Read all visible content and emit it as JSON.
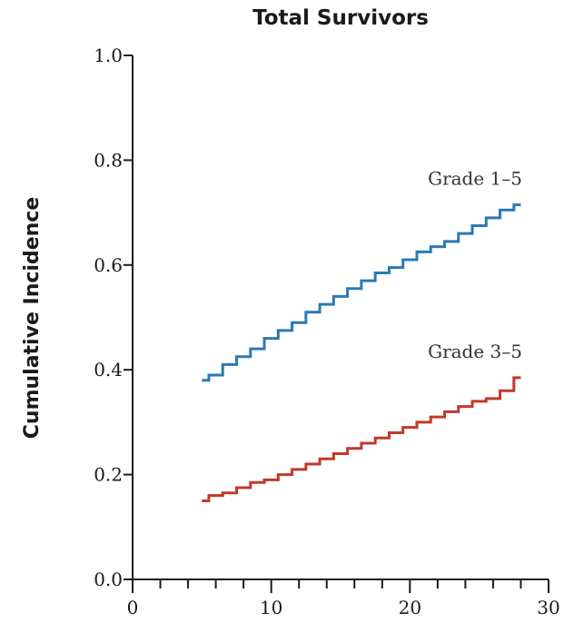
{
  "chart_data": {
    "type": "line",
    "title": "Total Survivors",
    "xlabel": "",
    "ylabel": "Cumulative Incidence",
    "xlim": [
      0,
      30
    ],
    "ylim": [
      0.0,
      1.0
    ],
    "x_ticks": [
      "0",
      "10",
      "20",
      "30"
    ],
    "y_ticks": [
      "0.0",
      "0.2",
      "0.4",
      "0.6",
      "0.8",
      "1.0"
    ],
    "grid": false,
    "series": [
      {
        "name": "Grade 1–5",
        "color": "#2a7ab5",
        "x": [
          5,
          5.5,
          6.5,
          7.5,
          8.5,
          9.5,
          10.5,
          11.5,
          12.5,
          13.5,
          14.5,
          15.5,
          16.5,
          17.5,
          18.5,
          19.5,
          20.5,
          21.5,
          22.5,
          23.5,
          24.5,
          25.5,
          26.5,
          27.5
        ],
        "y": [
          0.38,
          0.39,
          0.41,
          0.425,
          0.44,
          0.46,
          0.475,
          0.49,
          0.51,
          0.525,
          0.54,
          0.555,
          0.57,
          0.585,
          0.595,
          0.61,
          0.625,
          0.635,
          0.645,
          0.66,
          0.675,
          0.69,
          0.705,
          0.715
        ]
      },
      {
        "name": "Grade 3–5",
        "color": "#c0392b",
        "x": [
          5,
          5.5,
          6.5,
          7.5,
          8.5,
          9.5,
          10.5,
          11.5,
          12.5,
          13.5,
          14.5,
          15.5,
          16.5,
          17.5,
          18.5,
          19.5,
          20.5,
          21.5,
          22.5,
          23.5,
          24.5,
          25.5,
          26.5,
          27.5
        ],
        "y": [
          0.15,
          0.16,
          0.165,
          0.175,
          0.185,
          0.19,
          0.2,
          0.21,
          0.22,
          0.23,
          0.24,
          0.25,
          0.26,
          0.27,
          0.28,
          0.29,
          0.3,
          0.31,
          0.32,
          0.33,
          0.34,
          0.345,
          0.36,
          0.385
        ]
      }
    ]
  }
}
